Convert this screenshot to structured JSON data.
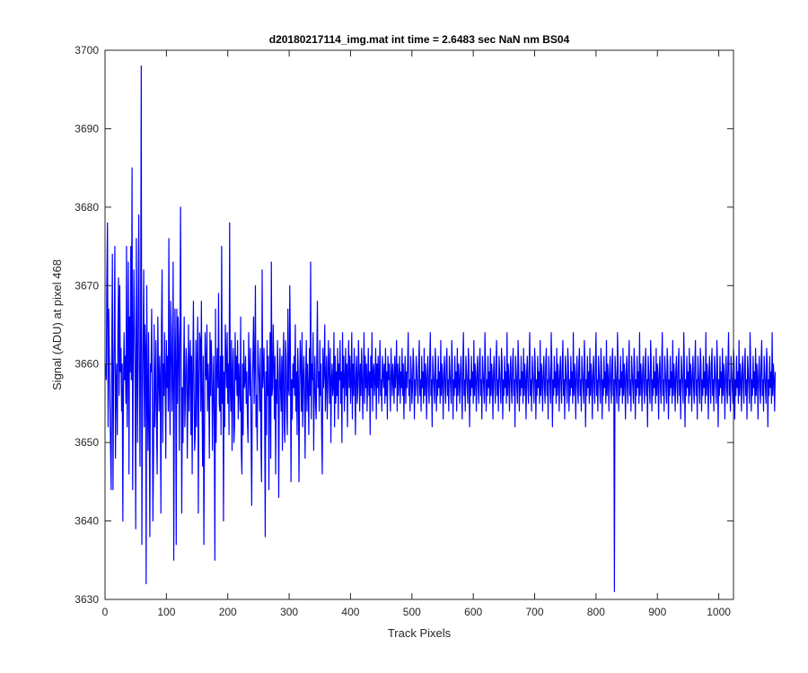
{
  "chart_data": {
    "type": "line",
    "title": "d20180217114_img.mat int time = 2.6483 sec  NaN nm BS04",
    "xlabel": "Track Pixels",
    "ylabel": "Signal (ADU) at pixel 468",
    "xlim": [
      0,
      1024
    ],
    "ylim": [
      3630,
      3700
    ],
    "x_ticks": [
      0,
      100,
      200,
      300,
      400,
      500,
      600,
      700,
      800,
      900,
      1000
    ],
    "y_ticks": [
      3630,
      3640,
      3650,
      3660,
      3670,
      3680,
      3690,
      3700
    ],
    "grid": false,
    "box": true,
    "series": [
      {
        "color": "#0000ff",
        "x_start": 1,
        "x_step": 1,
        "values": [
          3660,
          3658,
          3671,
          3678,
          3652,
          3667,
          3661,
          3655,
          3649,
          3644,
          3662,
          3674,
          3644,
          3658,
          3663,
          3675,
          3648,
          3657,
          3660,
          3651,
          3665,
          3671,
          3656,
          3670,
          3659,
          3662,
          3654,
          3660,
          3640,
          3657,
          3664,
          3658,
          3661,
          3655,
          3675,
          3652,
          3660,
          3673,
          3646,
          3666,
          3659,
          3675,
          3658,
          3685,
          3644,
          3660,
          3672,
          3665,
          3657,
          3639,
          3676,
          3661,
          3650,
          3668,
          3679,
          3659,
          3647,
          3665,
          3698,
          3637,
          3655,
          3663,
          3672,
          3652,
          3665,
          3662,
          3632,
          3670,
          3656,
          3649,
          3664,
          3653,
          3638,
          3660,
          3659,
          3667,
          3656,
          3640,
          3648,
          3665,
          3652,
          3657,
          3663,
          3651,
          3646,
          3666,
          3659,
          3654,
          3661,
          3658,
          3641,
          3665,
          3672,
          3650,
          3660,
          3656,
          3664,
          3658,
          3648,
          3663,
          3657,
          3661,
          3654,
          3676,
          3657,
          3651,
          3668,
          3664,
          3654,
          3659,
          3673,
          3635,
          3656,
          3667,
          3660,
          3637,
          3667,
          3655,
          3666,
          3663,
          3649,
          3662,
          3680,
          3662,
          3641,
          3657,
          3650,
          3659,
          3666,
          3652,
          3656,
          3662,
          3660,
          3648,
          3656,
          3665,
          3654,
          3660,
          3663,
          3651,
          3661,
          3646,
          3659,
          3668,
          3657,
          3649,
          3651,
          3663,
          3652,
          3660,
          3666,
          3641,
          3657,
          3664,
          3663,
          3654,
          3668,
          3656,
          3647,
          3661,
          3637,
          3650,
          3664,
          3659,
          3658,
          3665,
          3654,
          3660,
          3657,
          3648,
          3664,
          3656,
          3663,
          3660,
          3649,
          3656,
          3661,
          3652,
          3635,
          3667,
          3650,
          3659,
          3662,
          3657,
          3669,
          3655,
          3654,
          3661,
          3651,
          3675,
          3655,
          3661,
          3640,
          3659,
          3652,
          3665,
          3661,
          3657,
          3664,
          3655,
          3660,
          3651,
          3678,
          3657,
          3654,
          3663,
          3649,
          3659,
          3662,
          3650,
          3652,
          3664,
          3658,
          3661,
          3656,
          3663,
          3653,
          3660,
          3657,
          3654,
          3666,
          3649,
          3646,
          3660,
          3651,
          3663,
          3657,
          3658,
          3661,
          3655,
          3659,
          3653,
          3650,
          3664,
          3659,
          3656,
          3662,
          3651,
          3642,
          3657,
          3661,
          3666,
          3655,
          3660,
          3670,
          3652,
          3656,
          3649,
          3663,
          3660,
          3658,
          3654,
          3662,
          3650,
          3645,
          3672,
          3657,
          3659,
          3662,
          3655,
          3638,
          3659,
          3651,
          3663,
          3656,
          3661,
          3644,
          3657,
          3664,
          3648,
          3673,
          3656,
          3657,
          3665,
          3660,
          3653,
          3661,
          3646,
          3658,
          3655,
          3663,
          3659,
          3643,
          3656,
          3662,
          3657,
          3654,
          3661,
          3649,
          3660,
          3664,
          3652,
          3650,
          3663,
          3661,
          3654,
          3651,
          3667,
          3657,
          3656,
          3670,
          3662,
          3645,
          3658,
          3653,
          3660,
          3657,
          3661,
          3656,
          3665,
          3654,
          3659,
          3651,
          3662,
          3658,
          3645,
          3657,
          3663,
          3660,
          3654,
          3664,
          3652,
          3658,
          3661,
          3656,
          3648,
          3659,
          3663,
          3654,
          3660,
          3657,
          3651,
          3662,
          3656,
          3673,
          3653,
          3660,
          3658,
          3664,
          3649,
          3657,
          3661,
          3655,
          3653,
          3660,
          3668,
          3657,
          3659,
          3654,
          3663,
          3656,
          3660,
          3651,
          3646,
          3662,
          3657,
          3659,
          3665,
          3654,
          3658,
          3661,
          3653,
          3657,
          3663,
          3659,
          3655,
          3662,
          3650,
          3658,
          3660,
          3656,
          3657,
          3664,
          3652,
          3661,
          3655,
          3659,
          3656,
          3662,
          3653,
          3660,
          3658,
          3663,
          3655,
          3659,
          3650,
          3664,
          3657,
          3661,
          3654,
          3658,
          3662,
          3656,
          3660,
          3652,
          3659,
          3663,
          3657,
          3661,
          3655,
          3658,
          3664,
          3653,
          3660,
          3656,
          3662,
          3658,
          3651,
          3659,
          3661,
          3655,
          3657,
          3663,
          3659,
          3654,
          3660,
          3656,
          3662,
          3658,
          3653,
          3659,
          3664,
          3655,
          3661,
          3657,
          3660,
          3654,
          3658,
          3662,
          3656,
          3659,
          3651,
          3661,
          3657,
          3664,
          3654,
          3659,
          3660,
          3656,
          3658,
          3662,
          3653,
          3660,
          3657,
          3661,
          3655,
          3659,
          3663,
          3656,
          3658,
          3654,
          3661,
          3659,
          3657,
          3660,
          3655,
          3662,
          3656,
          3659,
          3653,
          3661,
          3658,
          3660,
          3657,
          3654,
          3662,
          3659,
          3656,
          3660,
          3658,
          3655,
          3661,
          3657,
          3659,
          3663,
          3654,
          3660,
          3656,
          3658,
          3661,
          3655,
          3659,
          3657,
          3662,
          3656,
          3660,
          3653,
          3658,
          3661,
          3655,
          3659,
          3657,
          3660,
          3664,
          3656,
          3658,
          3654,
          3661,
          3659,
          3655,
          3657,
          3662,
          3660,
          3653,
          3658,
          3656,
          3661,
          3659,
          3657,
          3655,
          3660,
          3663,
          3656,
          3658,
          3654,
          3661,
          3657,
          3659,
          3655,
          3662,
          3656,
          3660,
          3658,
          3653,
          3659,
          3661,
          3657,
          3655,
          3660,
          3664,
          3656,
          3658,
          3652,
          3661,
          3659,
          3657,
          3655,
          3662,
          3660,
          3654,
          3658,
          3656,
          3661,
          3657,
          3659,
          3655,
          3663,
          3656,
          3660,
          3658,
          3653,
          3659,
          3661,
          3657,
          3655,
          3660,
          3662,
          3656,
          3658,
          3654,
          3661,
          3659,
          3657,
          3655,
          3663,
          3660,
          3653,
          3658,
          3656,
          3661,
          3657,
          3659,
          3654,
          3662,
          3656,
          3660,
          3658,
          3655,
          3659,
          3661,
          3657,
          3653,
          3660,
          3664,
          3656,
          3658,
          3654,
          3661,
          3659,
          3657,
          3655,
          3662,
          3660,
          3652,
          3658,
          3656,
          3661,
          3657,
          3659,
          3655,
          3663,
          3656,
          3660,
          3658,
          3654,
          3659,
          3661,
          3657,
          3655,
          3660,
          3662,
          3656,
          3658,
          3653,
          3661,
          3659,
          3657,
          3655,
          3664,
          3660,
          3654,
          3658,
          3656,
          3661,
          3657,
          3659,
          3655,
          3662,
          3656,
          3660,
          3658,
          3653,
          3659,
          3661,
          3657,
          3655,
          3660,
          3663,
          3656,
          3658,
          3654,
          3661,
          3659,
          3657,
          3655,
          3662,
          3660,
          3653,
          3658,
          3656,
          3661,
          3657,
          3659,
          3655,
          3664,
          3656,
          3660,
          3658,
          3654,
          3659,
          3661,
          3657,
          3655,
          3660,
          3662,
          3656,
          3658,
          3652,
          3661,
          3659,
          3657,
          3655,
          3663,
          3660,
          3654,
          3658,
          3656,
          3661,
          3657,
          3659,
          3655,
          3662,
          3656,
          3660,
          3658,
          3653,
          3659,
          3661,
          3657,
          3655,
          3660,
          3664,
          3656,
          3658,
          3654,
          3661,
          3659,
          3657,
          3655,
          3662,
          3660,
          3653,
          3658,
          3656,
          3661,
          3657,
          3659,
          3655,
          3663,
          3656,
          3660,
          3658,
          3654,
          3659,
          3661,
          3657,
          3655,
          3660,
          3662,
          3656,
          3658,
          3653,
          3661,
          3659,
          3657,
          3655,
          3664,
          3660,
          3652,
          3658,
          3656,
          3661,
          3657,
          3659,
          3655,
          3662,
          3656,
          3660,
          3658,
          3654,
          3659,
          3661,
          3657,
          3655,
          3660,
          3663,
          3656,
          3658,
          3653,
          3661,
          3659,
          3657,
          3655,
          3662,
          3660,
          3654,
          3658,
          3656,
          3661,
          3657,
          3659,
          3655,
          3664,
          3656,
          3660,
          3658,
          3653,
          3659,
          3661,
          3657,
          3655,
          3660,
          3662,
          3656,
          3658,
          3654,
          3661,
          3659,
          3657,
          3655,
          3663,
          3660,
          3652,
          3658,
          3656,
          3661,
          3657,
          3659,
          3655,
          3662,
          3656,
          3660,
          3658,
          3653,
          3659,
          3661,
          3657,
          3655,
          3660,
          3664,
          3656,
          3658,
          3654,
          3661,
          3659,
          3657,
          3655,
          3662,
          3660,
          3653,
          3658,
          3656,
          3661,
          3657,
          3659,
          3655,
          3663,
          3656,
          3660,
          3658,
          3654,
          3659,
          3661,
          3657,
          3655,
          3660,
          3662,
          3656,
          3658,
          3631,
          3661,
          3659,
          3657,
          3655,
          3664,
          3660,
          3654,
          3658,
          3656,
          3661,
          3657,
          3659,
          3655,
          3662,
          3656,
          3660,
          3658,
          3653,
          3659,
          3661,
          3657,
          3655,
          3660,
          3663,
          3656,
          3658,
          3654,
          3661,
          3659,
          3657,
          3655,
          3662,
          3660,
          3653,
          3658,
          3656,
          3661,
          3657,
          3659,
          3655,
          3664,
          3656,
          3660,
          3658,
          3654,
          3659,
          3661,
          3657,
          3655,
          3660,
          3662,
          3656,
          3658,
          3652,
          3661,
          3659,
          3657,
          3655,
          3663,
          3660,
          3654,
          3658,
          3656,
          3661,
          3657,
          3659,
          3655,
          3662,
          3656,
          3660,
          3658,
          3653,
          3659,
          3661,
          3657,
          3655,
          3660,
          3664,
          3656,
          3658,
          3654,
          3661,
          3659,
          3657,
          3655,
          3662,
          3660,
          3653,
          3658,
          3656,
          3661,
          3657,
          3659,
          3655,
          3663,
          3656,
          3660,
          3658,
          3654,
          3659,
          3661,
          3657,
          3655,
          3660,
          3662,
          3656,
          3658,
          3653,
          3661,
          3659,
          3657,
          3655,
          3664,
          3660,
          3652,
          3658,
          3656,
          3661,
          3657,
          3659,
          3655,
          3662,
          3656,
          3660,
          3658,
          3654,
          3659,
          3661,
          3657,
          3655,
          3660,
          3663,
          3656,
          3658,
          3653,
          3661,
          3659,
          3657,
          3655,
          3662,
          3660,
          3654,
          3658,
          3656,
          3661,
          3657,
          3659,
          3655,
          3664,
          3656,
          3660,
          3658,
          3653,
          3659,
          3661,
          3657,
          3655,
          3660,
          3662,
          3656,
          3658,
          3654,
          3661,
          3659,
          3657,
          3655,
          3663,
          3660,
          3652,
          3658,
          3656,
          3661,
          3657,
          3659,
          3655,
          3662,
          3656,
          3660,
          3658,
          3653,
          3659,
          3661,
          3657,
          3655,
          3660,
          3664,
          3656,
          3658,
          3654,
          3661,
          3659,
          3657,
          3655,
          3662,
          3660,
          3653,
          3658,
          3656,
          3661,
          3657,
          3659,
          3655,
          3663,
          3656,
          3660,
          3658,
          3654,
          3659,
          3661,
          3657,
          3655,
          3660,
          3662,
          3656,
          3658,
          3653,
          3661,
          3659,
          3657,
          3655,
          3664,
          3660,
          3654,
          3658,
          3656,
          3661,
          3657,
          3659,
          3655,
          3662,
          3656,
          3660,
          3658,
          3653,
          3659,
          3661,
          3657,
          3655,
          3660,
          3663,
          3656,
          3658,
          3654,
          3661,
          3659,
          3657,
          3655,
          3662,
          3660,
          3652,
          3658,
          3656,
          3661,
          3657,
          3659,
          3655,
          3664,
          3656,
          3660,
          3658,
          3654,
          3659
        ]
      }
    ]
  }
}
